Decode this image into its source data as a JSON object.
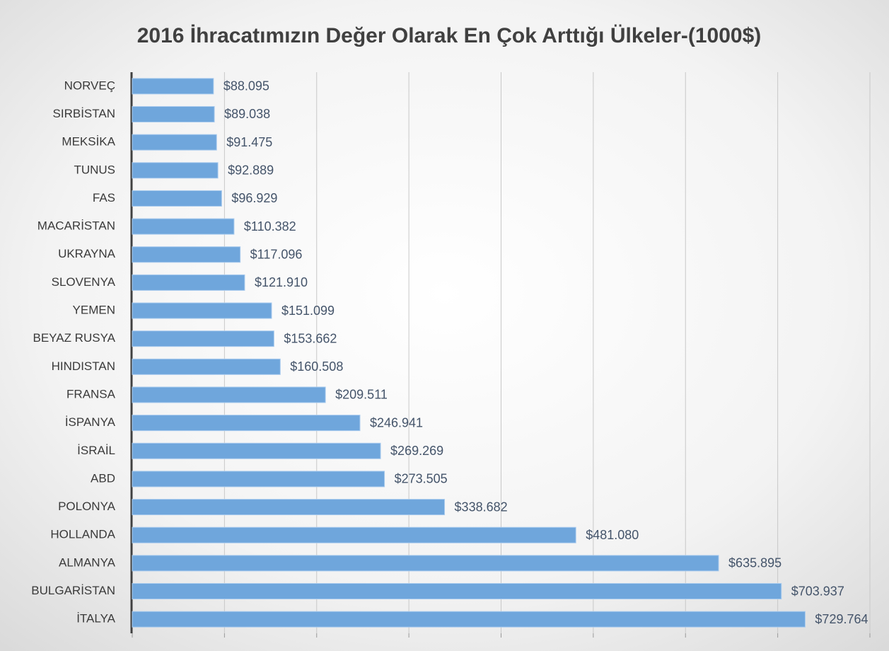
{
  "chart_data": {
    "type": "bar",
    "orientation": "horizontal",
    "title": "2016 İhracatımızın Değer Olarak En Çok Arttığı Ülkeler-(1000$)",
    "categories": [
      "NORVEÇ",
      "SIRBİSTAN",
      "MEKSİKA",
      "TUNUS",
      "FAS",
      "MACARİSTAN",
      "UKRAYNA",
      "SLOVENYA",
      "YEMEN",
      "BEYAZ RUSYA",
      "HINDISTAN",
      "FRANSA",
      "İSPANYA",
      "İSRAİL",
      "ABD",
      "POLONYA",
      "HOLLANDA",
      "ALMANYA",
      "BULGARİSTAN",
      "İTALYA"
    ],
    "values": [
      88095,
      89038,
      91475,
      92889,
      96929,
      110382,
      117096,
      121910,
      151099,
      153662,
      160508,
      209511,
      246941,
      269269,
      273505,
      338682,
      481080,
      635895,
      703937,
      729764
    ],
    "value_labels": [
      "$88.095",
      "$89.038",
      "$91.475",
      "$92.889",
      "$96.929",
      "$110.382",
      "$117.096",
      "$121.910",
      "$151.099",
      "$153.662",
      "$160.508",
      "$209.511",
      "$246.941",
      "$269.269",
      "$273.505",
      "$338.682",
      "$481.080",
      "$635.895",
      "$703.937",
      "$729.764"
    ],
    "color": "#6fa6dc",
    "xlim": [
      0,
      800000
    ],
    "xticks": [
      0,
      100000,
      200000,
      300000,
      400000,
      500000,
      600000,
      700000,
      800000
    ],
    "grid": true
  }
}
